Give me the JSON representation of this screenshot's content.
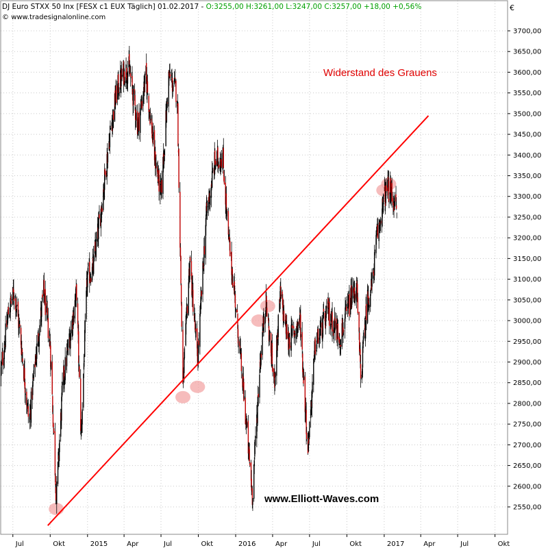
{
  "header": {
    "symbol_line": "DJ Euro STXX 50 Inx [FESX c1 EUX  Täglich] 01.02.2017 - ",
    "quote_line": "O:3255,00 H:3261,00 L:3247,00 C:3257,00 +18,00 +0,56%",
    "source": "www.tradesignalonline.com",
    "currency": "€"
  },
  "annotation": {
    "title": "Widerstand des Grauens",
    "watermark": "www.Elliott-Waves.com"
  },
  "colors": {
    "trendline": "#ff0000",
    "candle_up": "#000000",
    "candle_down": "#c00000",
    "highlight": "#f3a6a6",
    "grid": "#c8c8c8"
  },
  "chart_data": {
    "type": "candlestick",
    "instrument": "DJ Euro STXX 50 Inx [FESX c1 EUX Täglich]",
    "last_bar": {
      "date": "01.02.2017",
      "open": 3255,
      "high": 3261,
      "low": 3247,
      "close": 3257,
      "change": 18,
      "change_pct": 0.56
    },
    "y_range": [
      2500,
      3740
    ],
    "y_ticks": [
      2550,
      2600,
      2650,
      2700,
      2750,
      2800,
      2850,
      2900,
      2950,
      3000,
      3050,
      3100,
      3150,
      3200,
      3250,
      3300,
      3350,
      3400,
      3450,
      3500,
      3550,
      3600,
      3650,
      3700
    ],
    "y_tick_labels": [
      "2550,00",
      "2600,00",
      "2650,00",
      "2700,00",
      "2750,00",
      "2800,00",
      "2850,00",
      "2900,00",
      "2950,00",
      "3000,00",
      "3050,00",
      "3100,00",
      "3150,00",
      "3200,00",
      "3250,00",
      "3300,00",
      "3350,00",
      "3400,00",
      "3450,00",
      "3500,00",
      "3550,00",
      "3600,00",
      "3650,00",
      "3700,00"
    ],
    "x_range": [
      "2014-06-01",
      "2017-11-01"
    ],
    "x_ticks": [
      {
        "date": "2014-07-01",
        "label": "Jul"
      },
      {
        "date": "2014-10-01",
        "label": "Okt"
      },
      {
        "date": "2015-01-01",
        "label": "2015"
      },
      {
        "date": "2015-04-01",
        "label": "Apr"
      },
      {
        "date": "2015-07-01",
        "label": "Jul"
      },
      {
        "date": "2015-10-01",
        "label": "Okt"
      },
      {
        "date": "2016-01-01",
        "label": "2016"
      },
      {
        "date": "2016-04-01",
        "label": "Apr"
      },
      {
        "date": "2016-07-01",
        "label": "Jul"
      },
      {
        "date": "2016-10-01",
        "label": "Okt"
      },
      {
        "date": "2017-01-01",
        "label": "2017"
      },
      {
        "date": "2017-04-01",
        "label": "Apr"
      },
      {
        "date": "2017-07-01",
        "label": "Jul"
      },
      {
        "date": "2017-10-01",
        "label": "Okt"
      }
    ],
    "grid": true,
    "price_path": [
      [
        "2014-06-01",
        2870
      ],
      [
        "2014-06-20",
        3020
      ],
      [
        "2014-07-05",
        3070
      ],
      [
        "2014-07-20",
        2960
      ],
      [
        "2014-08-10",
        2750
      ],
      [
        "2014-08-25",
        2900
      ],
      [
        "2014-09-15",
        3070
      ],
      [
        "2014-10-01",
        2940
      ],
      [
        "2014-10-16",
        2570
      ],
      [
        "2014-11-01",
        2850
      ],
      [
        "2014-11-20",
        2970
      ],
      [
        "2014-12-05",
        3070
      ],
      [
        "2014-12-16",
        2720
      ],
      [
        "2014-12-31",
        3100
      ],
      [
        "2015-01-15",
        3130
      ],
      [
        "2015-02-01",
        3250
      ],
      [
        "2015-02-25",
        3450
      ],
      [
        "2015-03-15",
        3560
      ],
      [
        "2015-04-01",
        3600
      ],
      [
        "2015-04-13",
        3610
      ],
      [
        "2015-05-05",
        3470
      ],
      [
        "2015-05-25",
        3590
      ],
      [
        "2015-06-15",
        3400
      ],
      [
        "2015-07-01",
        3300
      ],
      [
        "2015-07-20",
        3590
      ],
      [
        "2015-08-10",
        3550
      ],
      [
        "2015-08-24",
        2840
      ],
      [
        "2015-09-10",
        3150
      ],
      [
        "2015-09-29",
        2900
      ],
      [
        "2015-10-20",
        3250
      ],
      [
        "2015-11-10",
        3380
      ],
      [
        "2015-11-30",
        3400
      ],
      [
        "2015-12-14",
        3200
      ],
      [
        "2015-12-31",
        3050
      ],
      [
        "2016-01-20",
        2830
      ],
      [
        "2016-02-11",
        2580
      ],
      [
        "2016-03-01",
        2900
      ],
      [
        "2016-03-15",
        3050
      ],
      [
        "2016-04-05",
        2850
      ],
      [
        "2016-04-20",
        3060
      ],
      [
        "2016-05-10",
        2950
      ],
      [
        "2016-06-08",
        3000
      ],
      [
        "2016-06-27",
        2690
      ],
      [
        "2016-07-15",
        2940
      ],
      [
        "2016-08-15",
        3020
      ],
      [
        "2016-09-15",
        2960
      ],
      [
        "2016-10-10",
        3050
      ],
      [
        "2016-10-25",
        3080
      ],
      [
        "2016-11-04",
        2860
      ],
      [
        "2016-11-20",
        3050
      ],
      [
        "2016-12-01",
        3080
      ],
      [
        "2016-12-14",
        3200
      ],
      [
        "2017-01-02",
        3300
      ],
      [
        "2017-01-10",
        3320
      ],
      [
        "2017-01-25",
        3290
      ],
      [
        "2017-02-01",
        3257
      ]
    ],
    "trendline": {
      "name": "Widerstand des Grauens",
      "from": [
        "2014-09-25",
        2505
      ],
      "to": [
        "2017-04-20",
        3495
      ]
    },
    "highlights": [
      [
        "2014-10-16",
        2545
      ],
      [
        "2015-08-24",
        2815
      ],
      [
        "2015-09-29",
        2840
      ],
      [
        "2016-02-27",
        3000
      ],
      [
        "2016-03-20",
        3035
      ],
      [
        "2016-12-31",
        3315
      ],
      [
        "2017-01-12",
        3330
      ]
    ]
  }
}
